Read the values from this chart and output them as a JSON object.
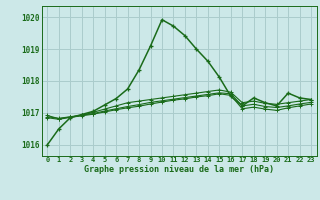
{
  "title": "Graphe pression niveau de la mer (hPa)",
  "bg_color": "#cce8e8",
  "grid_color": "#aacccc",
  "line_color": "#1a6b1a",
  "xlim": [
    -0.5,
    23.5
  ],
  "ylim": [
    1015.65,
    1020.35
  ],
  "yticks": [
    1016,
    1017,
    1018,
    1019,
    1020
  ],
  "xticks": [
    0,
    1,
    2,
    3,
    4,
    5,
    6,
    7,
    8,
    9,
    10,
    11,
    12,
    13,
    14,
    15,
    16,
    17,
    18,
    19,
    20,
    21,
    22,
    23
  ],
  "series": [
    [
      1016.0,
      1016.5,
      1016.85,
      1016.95,
      1017.05,
      1017.25,
      1017.45,
      1017.75,
      1018.35,
      1019.1,
      1019.92,
      1019.72,
      1019.42,
      1019.0,
      1018.62,
      1018.12,
      1017.52,
      1017.22,
      1017.47,
      1017.32,
      1017.22,
      1017.62,
      1017.47,
      1017.42
    ],
    [
      1016.92,
      1016.82,
      1016.87,
      1016.92,
      1017.02,
      1017.12,
      1017.22,
      1017.32,
      1017.37,
      1017.42,
      1017.47,
      1017.52,
      1017.57,
      1017.62,
      1017.67,
      1017.72,
      1017.65,
      1017.32,
      1017.37,
      1017.3,
      1017.27,
      1017.32,
      1017.37,
      1017.42
    ],
    [
      1016.88,
      1016.83,
      1016.88,
      1016.93,
      1016.98,
      1017.06,
      1017.13,
      1017.2,
      1017.26,
      1017.33,
      1017.38,
      1017.43,
      1017.48,
      1017.53,
      1017.58,
      1017.63,
      1017.6,
      1017.22,
      1017.27,
      1017.2,
      1017.17,
      1017.22,
      1017.28,
      1017.33
    ],
    [
      1016.85,
      1016.8,
      1016.86,
      1016.91,
      1016.96,
      1017.03,
      1017.1,
      1017.16,
      1017.21,
      1017.28,
      1017.34,
      1017.4,
      1017.44,
      1017.5,
      1017.54,
      1017.6,
      1017.55,
      1017.13,
      1017.18,
      1017.12,
      1017.08,
      1017.16,
      1017.22,
      1017.28
    ]
  ]
}
